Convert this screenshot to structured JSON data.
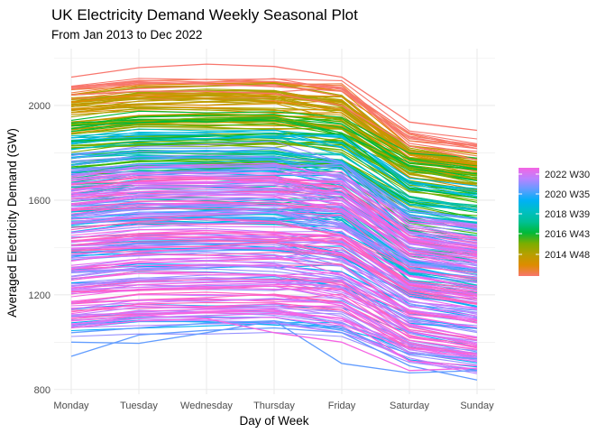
{
  "chart_data": {
    "type": "line",
    "title": "UK Electricity Demand Weekly Seasonal Plot",
    "subtitle": "From Jan 2013 to Dec 2022",
    "xlabel": "Day of Week",
    "ylabel": "Averaged Electricity Demand (GW)",
    "categories": [
      "Monday",
      "Tuesday",
      "Wednesday",
      "Thursday",
      "Friday",
      "Saturday",
      "Sunday"
    ],
    "ylim": [
      780,
      2240
    ],
    "yticks": [
      800,
      1200,
      1600,
      2000
    ],
    "grid": true,
    "legend": {
      "position": "right",
      "type": "colorbar",
      "labels": [
        "2022 W30",
        "2020 W35",
        "2018 W39",
        "2016 W43",
        "2014 W48"
      ],
      "colors_top_to_bottom": [
        "#F564E3",
        "#B983FF",
        "#619CFF",
        "#00B0F6",
        "#00BFC4",
        "#00C094",
        "#00BA38",
        "#7CAE00",
        "#B79F00",
        "#DE8C00",
        "#F8766D"
      ]
    },
    "series_groups": [
      {
        "colors": [
          "#F8766D",
          "#F0804A"
        ],
        "count": 18,
        "mon": [
          1990,
          2120
        ],
        "fri": [
          1960,
          2110
        ],
        "sat": [
          1760,
          1930
        ],
        "sun": [
          1720,
          1900
        ]
      },
      {
        "colors": [
          "#DE8C00",
          "#C49A00",
          "#B79F00",
          "#A3A500"
        ],
        "count": 45,
        "mon": [
          1880,
          2050
        ],
        "fri": [
          1900,
          2060
        ],
        "sat": [
          1700,
          1820
        ],
        "sun": [
          1650,
          1790
        ]
      },
      {
        "colors": [
          "#7CAE00",
          "#39B600",
          "#00BA38"
        ],
        "count": 40,
        "mon": [
          1700,
          1940
        ],
        "fri": [
          1700,
          1950
        ],
        "sat": [
          1520,
          1780
        ],
        "sun": [
          1460,
          1740
        ]
      },
      {
        "colors": [
          "#00C094",
          "#00BFC4",
          "#00B9E3"
        ],
        "count": 55,
        "mon": [
          1480,
          1880
        ],
        "fri": [
          1460,
          1880
        ],
        "sat": [
          1260,
          1700
        ],
        "sun": [
          1200,
          1680
        ]
      },
      {
        "colors": [
          "#00B0F6",
          "#619CFF",
          "#9590FF"
        ],
        "count": 80,
        "mon": [
          1000,
          1800
        ],
        "fri": [
          960,
          1760
        ],
        "sat": [
          900,
          1560
        ],
        "sun": [
          880,
          1540
        ]
      },
      {
        "colors": [
          "#B983FF",
          "#E76BF3",
          "#F564E3",
          "#FF62BC"
        ],
        "count": 120,
        "mon": [
          1060,
          1720
        ],
        "fri": [
          1040,
          1720
        ],
        "sat": [
          920,
          1520
        ],
        "sun": [
          900,
          1480
        ]
      }
    ],
    "highlight_series": [
      {
        "color": "#F8766D",
        "values": [
          2120,
          2160,
          2175,
          2165,
          2120,
          1930,
          1895
        ]
      },
      {
        "color": "#F8766D",
        "values": [
          2080,
          2100,
          2090,
          2080,
          2060,
          1860,
          1830
        ]
      },
      {
        "color": "#F8766D",
        "values": [
          2045,
          2060,
          2060,
          2050,
          2000,
          1830,
          1770
        ]
      },
      {
        "color": "#00BA38",
        "values": [
          1850,
          1860,
          1870,
          1880,
          1880,
          1650,
          1610
        ]
      },
      {
        "color": "#619CFF",
        "values": [
          1000,
          995,
          1040,
          1090,
          910,
          870,
          880
        ]
      },
      {
        "color": "#619CFF",
        "values": [
          940,
          1030,
          1050,
          1060,
          1040,
          900,
          840
        ]
      },
      {
        "color": "#619CFF",
        "values": [
          1040,
          1060,
          1080,
          1090,
          1050,
          950,
          930
        ]
      },
      {
        "color": "#F564E3",
        "values": [
          1060,
          1090,
          1100,
          1040,
          1000,
          880,
          890
        ]
      },
      {
        "color": "#F564E3",
        "values": [
          1090,
          1110,
          1130,
          1130,
          1100,
          920,
          900
        ]
      }
    ]
  }
}
